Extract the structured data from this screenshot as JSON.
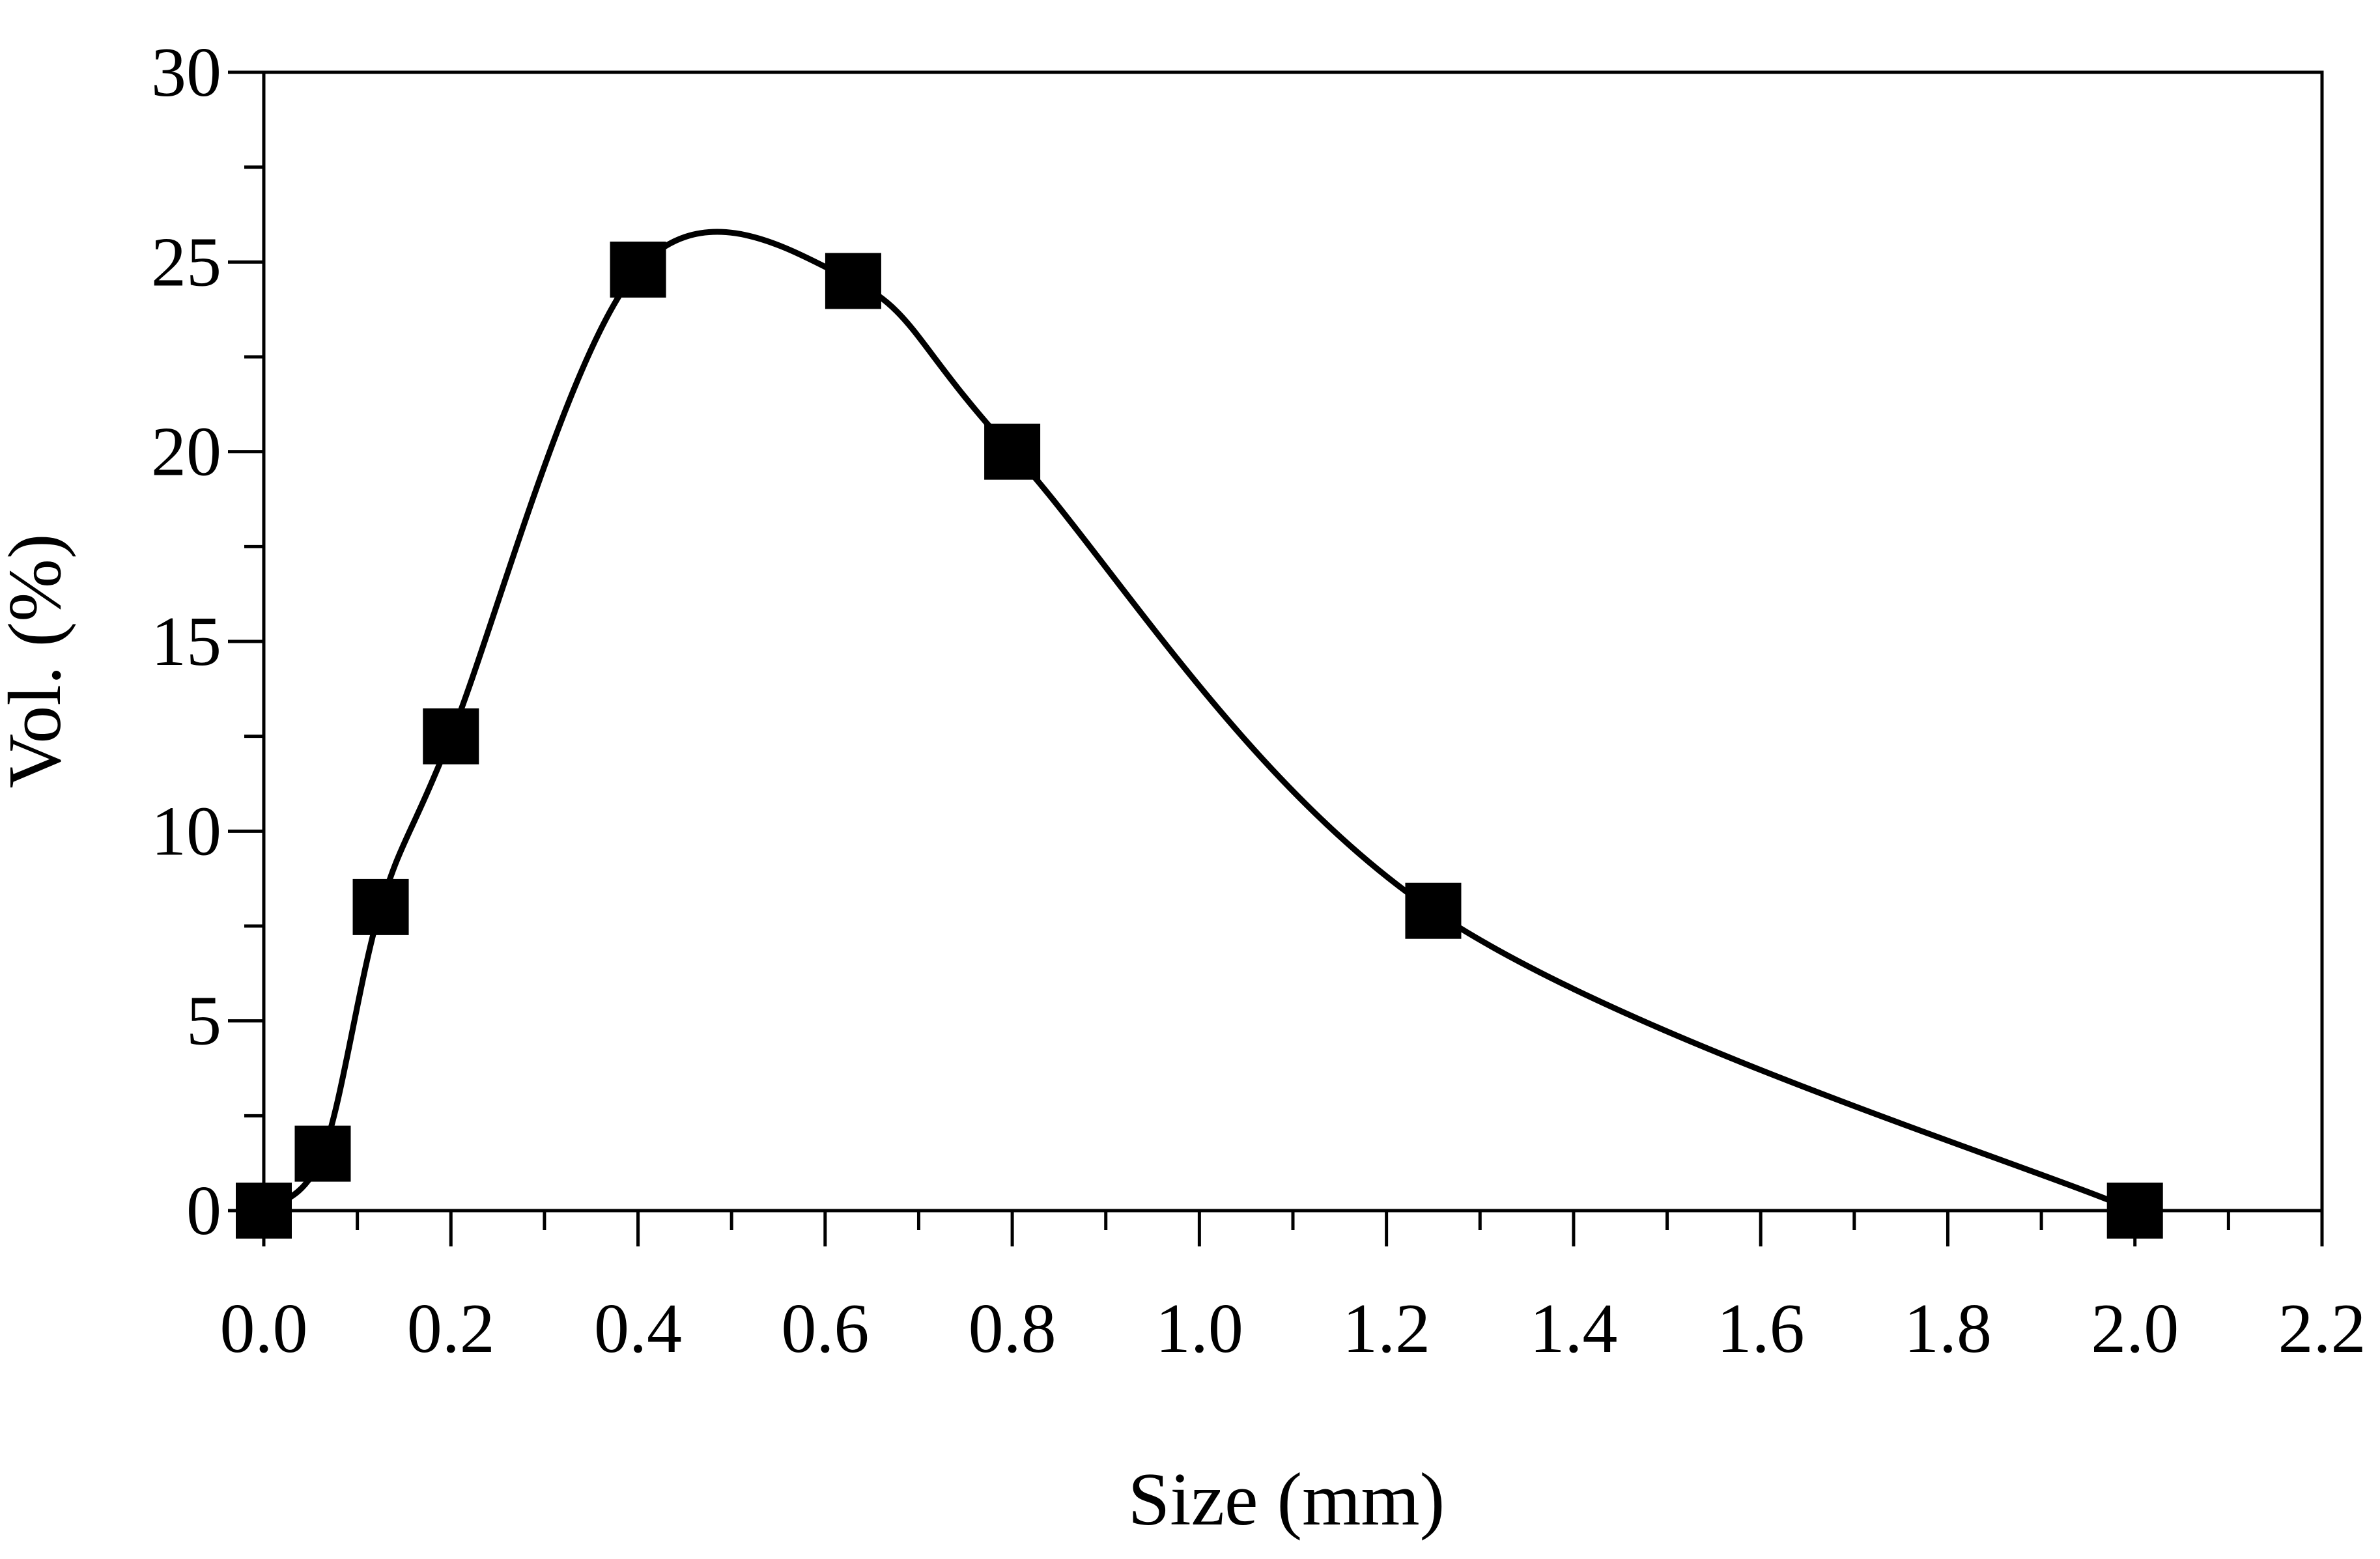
{
  "chart_data": {
    "type": "line",
    "title": "",
    "xlabel": "Size (mm)",
    "ylabel": "Vol. (%)",
    "xlim": [
      0.0,
      2.2
    ],
    "ylim": [
      0,
      30
    ],
    "x_ticks": [
      "0.0",
      "0.2",
      "0.4",
      "0.6",
      "0.8",
      "1.0",
      "1.2",
      "1.4",
      "1.6",
      "1.8",
      "2.0",
      "2.2"
    ],
    "x_tick_values": [
      0.0,
      0.2,
      0.4,
      0.6,
      0.8,
      1.0,
      1.2,
      1.4,
      1.6,
      1.8,
      2.0,
      2.2
    ],
    "y_ticks": [
      "0",
      "5",
      "10",
      "15",
      "20",
      "25",
      "30"
    ],
    "y_tick_values": [
      0,
      5,
      10,
      15,
      20,
      25,
      30
    ],
    "grid": false,
    "legend": "none",
    "marker": "square",
    "line_style": "smooth",
    "color": "#000000",
    "series": [
      {
        "x": [
          0.0,
          0.063,
          0.125,
          0.2,
          0.4,
          0.63,
          0.8,
          1.25,
          2.0
        ],
        "y": [
          0.0,
          1.5,
          8.0,
          12.5,
          24.8,
          24.5,
          20.0,
          7.9,
          0.0
        ]
      }
    ]
  }
}
